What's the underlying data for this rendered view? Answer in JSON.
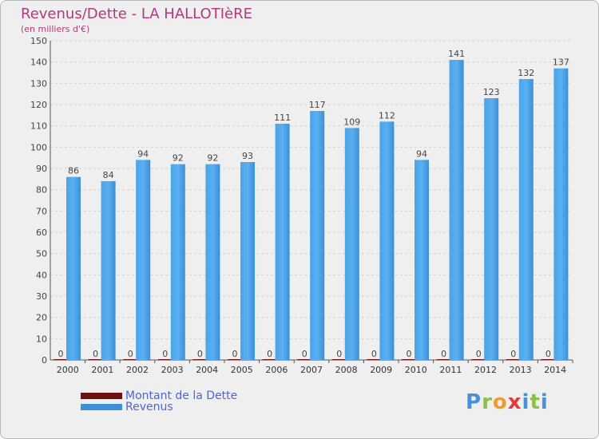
{
  "chart_data": {
    "type": "bar",
    "title": "Revenus/Dette - LA HALLOTIèRE",
    "subtitle": "(en milliers d'€)",
    "categories": [
      "2000",
      "2001",
      "2002",
      "2003",
      "2004",
      "2005",
      "2006",
      "2007",
      "2008",
      "2009",
      "2010",
      "2011",
      "2012",
      "2013",
      "2014"
    ],
    "series": [
      {
        "name": "Montant de la Dette",
        "color": "#6e1010",
        "values": [
          0,
          0,
          0,
          0,
          0,
          0,
          0,
          0,
          0,
          0,
          0,
          0,
          0,
          0,
          0
        ]
      },
      {
        "name": "Revenus",
        "color": "#3d8fd6",
        "values": [
          86,
          84,
          94,
          92,
          92,
          93,
          111,
          117,
          109,
          112,
          94,
          141,
          123,
          132,
          137
        ]
      }
    ],
    "ylim": [
      0,
      150
    ],
    "yticks": [
      0,
      10,
      20,
      30,
      40,
      50,
      60,
      70,
      80,
      90,
      100,
      110,
      120,
      130,
      140,
      150
    ],
    "grid": true,
    "legend": "bottom-left"
  },
  "logo": {
    "letters": [
      "P",
      "r",
      "o",
      "x",
      "i",
      "t",
      "i"
    ]
  }
}
